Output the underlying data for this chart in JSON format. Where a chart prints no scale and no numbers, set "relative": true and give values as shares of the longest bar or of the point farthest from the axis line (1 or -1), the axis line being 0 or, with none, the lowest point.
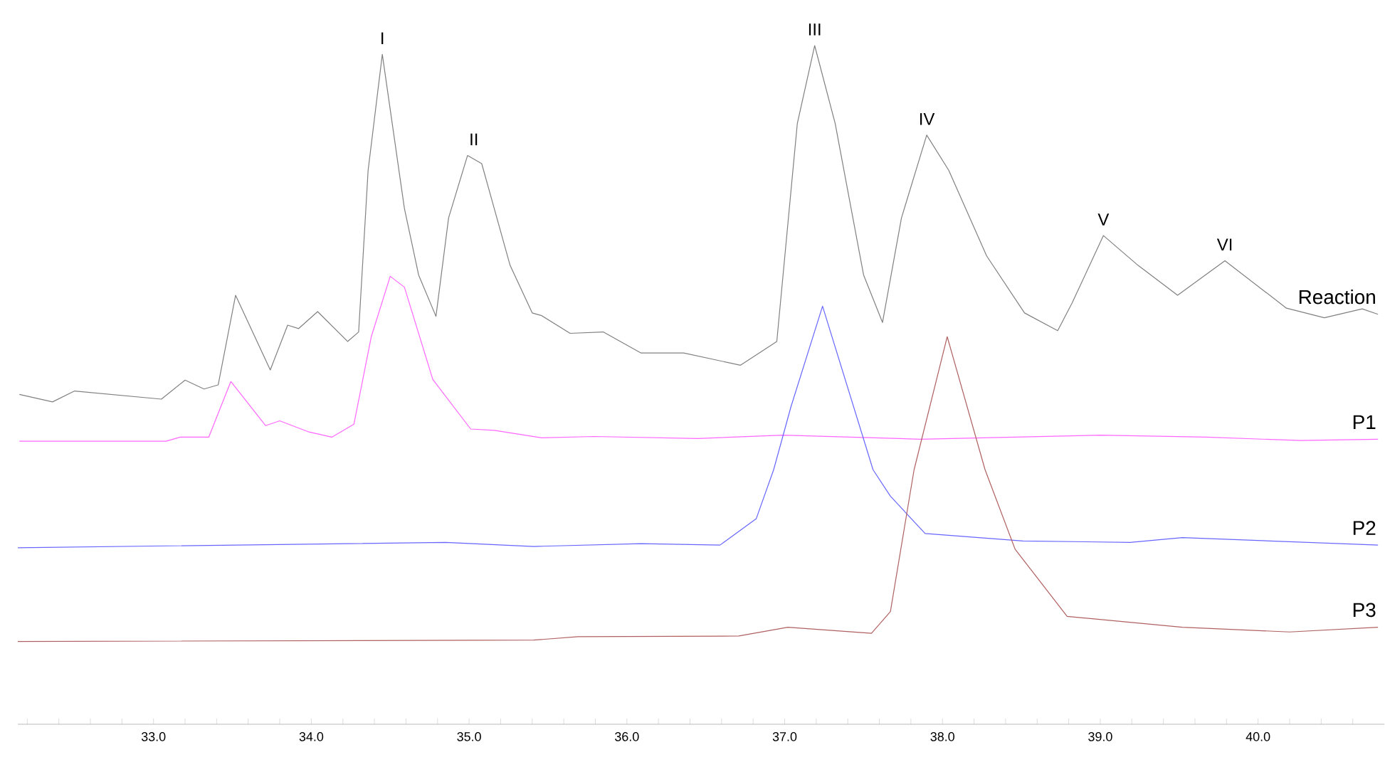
{
  "chart_data": {
    "type": "line",
    "relative": true,
    "xlim": [
      32.14,
      40.8
    ],
    "xticks": [
      {
        "value": 32.2,
        "label": null
      },
      {
        "value": 32.4,
        "label": null
      },
      {
        "value": 32.6,
        "label": null
      },
      {
        "value": 32.8,
        "label": null
      },
      {
        "value": 33,
        "label": "33.0"
      },
      {
        "value": 33.2,
        "label": null
      },
      {
        "value": 33.4,
        "label": null
      },
      {
        "value": 33.6,
        "label": null
      },
      {
        "value": 33.8,
        "label": null
      },
      {
        "value": 34,
        "label": "34.0"
      },
      {
        "value": 34.2,
        "label": null
      },
      {
        "value": 34.4,
        "label": null
      },
      {
        "value": 34.6,
        "label": null
      },
      {
        "value": 34.8,
        "label": null
      },
      {
        "value": 35,
        "label": "35.0"
      },
      {
        "value": 35.2,
        "label": null
      },
      {
        "value": 35.4,
        "label": null
      },
      {
        "value": 35.6,
        "label": null
      },
      {
        "value": 35.8,
        "label": null
      },
      {
        "value": 36,
        "label": "36.0"
      },
      {
        "value": 36.2,
        "label": null
      },
      {
        "value": 36.4,
        "label": null
      },
      {
        "value": 36.6,
        "label": null
      },
      {
        "value": 36.8,
        "label": null
      },
      {
        "value": 37,
        "label": "37.0"
      },
      {
        "value": 37.2,
        "label": null
      },
      {
        "value": 37.4,
        "label": null
      },
      {
        "value": 37.6,
        "label": null
      },
      {
        "value": 37.8,
        "label": null
      },
      {
        "value": 38,
        "label": "38.0"
      },
      {
        "value": 38.2,
        "label": null
      },
      {
        "value": 38.4,
        "label": null
      },
      {
        "value": 38.6,
        "label": null
      },
      {
        "value": 38.8,
        "label": null
      },
      {
        "value": 39,
        "label": "39.0"
      },
      {
        "value": 39.2,
        "label": null
      },
      {
        "value": 39.4,
        "label": null
      },
      {
        "value": 39.6,
        "label": null
      },
      {
        "value": 39.8,
        "label": null
      },
      {
        "value": 40,
        "label": "40.0"
      },
      {
        "value": 40.2,
        "label": null
      },
      {
        "value": 40.4,
        "label": null
      },
      {
        "value": 40.6,
        "label": null
      }
    ],
    "series": [
      {
        "name": "Reaction",
        "color": "#808080",
        "x": [
          32.15,
          32.36,
          32.5,
          33.05,
          33.2,
          33.32,
          33.41,
          33.52,
          33.74,
          33.85,
          33.92,
          34.04,
          34.23,
          34.3,
          34.36,
          34.45,
          34.59,
          34.68,
          34.79,
          34.87,
          34.99,
          35.08,
          35.26,
          35.4,
          35.46,
          35.64,
          35.85,
          36.09,
          36.36,
          36.72,
          36.95,
          37.08,
          37.19,
          37.32,
          37.5,
          37.62,
          37.74,
          37.9,
          38.04,
          38.28,
          38.52,
          38.73,
          38.82,
          39.02,
          39.24,
          39.49,
          39.79,
          40.18,
          40.42,
          40.66,
          40.76
        ],
        "values": [
          0.486,
          0.475,
          0.491,
          0.479,
          0.507,
          0.494,
          0.5,
          0.632,
          0.522,
          0.588,
          0.583,
          0.608,
          0.564,
          0.578,
          0.816,
          0.987,
          0.76,
          0.662,
          0.601,
          0.746,
          0.838,
          0.826,
          0.676,
          0.606,
          0.602,
          0.576,
          0.578,
          0.547,
          0.547,
          0.529,
          0.564,
          0.885,
          1.0,
          0.885,
          0.662,
          0.592,
          0.746,
          0.868,
          0.816,
          0.69,
          0.606,
          0.58,
          0.62,
          0.72,
          0.676,
          0.632,
          0.683,
          0.613,
          0.599,
          0.612,
          0.604
        ]
      },
      {
        "name": "P1",
        "color": "#ff66ff",
        "x": [
          32.15,
          33.08,
          33.17,
          33.35,
          33.49,
          33.71,
          33.8,
          33.98,
          34.13,
          34.27,
          34.38,
          34.5,
          34.59,
          34.77,
          35.01,
          35.16,
          35.46,
          35.79,
          36.45,
          36.99,
          37.86,
          39.0,
          39.67,
          40.27,
          40.76
        ],
        "values": [
          0.417,
          0.417,
          0.423,
          0.423,
          0.505,
          0.44,
          0.447,
          0.431,
          0.423,
          0.442,
          0.571,
          0.66,
          0.644,
          0.508,
          0.435,
          0.433,
          0.422,
          0.424,
          0.421,
          0.426,
          0.42,
          0.426,
          0.423,
          0.418,
          0.42
        ]
      },
      {
        "name": "P2",
        "color": "#6666ff",
        "x": [
          32.14,
          34.85,
          35.41,
          36.09,
          36.59,
          36.82,
          36.93,
          37.04,
          37.24,
          37.56,
          37.67,
          37.89,
          38.51,
          39.19,
          39.52,
          40.76
        ],
        "values": [
          0.26,
          0.268,
          0.262,
          0.266,
          0.264,
          0.303,
          0.375,
          0.468,
          0.616,
          0.375,
          0.336,
          0.281,
          0.27,
          0.268,
          0.275,
          0.264
        ]
      },
      {
        "name": "P3",
        "color": "#b06060",
        "x": [
          32.14,
          35.41,
          35.69,
          36.71,
          37.02,
          37.55,
          37.67,
          37.82,
          38.03,
          38.27,
          38.46,
          38.79,
          39.52,
          40.2,
          40.76
        ],
        "values": [
          0.122,
          0.124,
          0.129,
          0.13,
          0.143,
          0.134,
          0.166,
          0.375,
          0.571,
          0.375,
          0.258,
          0.159,
          0.143,
          0.136,
          0.143
        ]
      }
    ],
    "annotations": [
      {
        "text": "I",
        "x": 34.45,
        "y": 0.987
      },
      {
        "text": "II",
        "x": 35.03,
        "y": 0.838
      },
      {
        "text": "III",
        "x": 37.19,
        "y": 1.0
      },
      {
        "text": "IV",
        "x": 37.9,
        "y": 0.868
      },
      {
        "text": "V",
        "x": 39.02,
        "y": 0.72
      },
      {
        "text": "VI",
        "x": 39.79,
        "y": 0.683
      }
    ]
  }
}
